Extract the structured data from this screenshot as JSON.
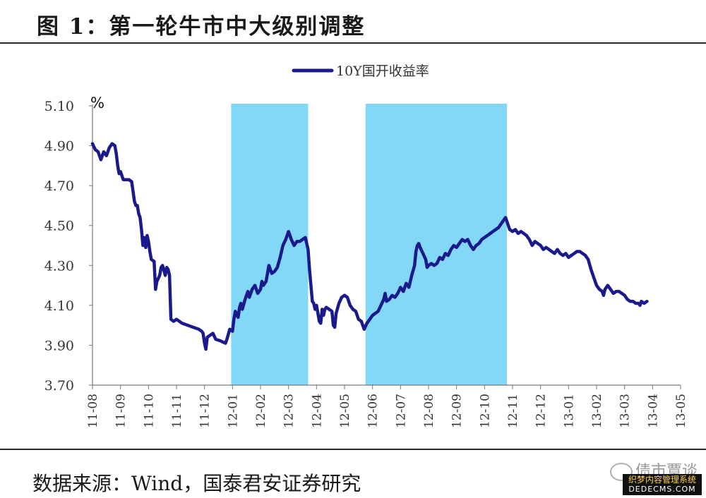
{
  "figure": {
    "title": "图 1：第一轮牛市中大级别调整",
    "source": "数据来源：Wind，国泰君安证券研究",
    "watermark": "债市覃谈",
    "stamp_line1": "织梦内容管理系统",
    "stamp_line2": "DEDECMS.COM"
  },
  "chart_data": {
    "type": "line",
    "title": "",
    "xlabel": "",
    "ylabel": "%",
    "ylim": [
      3.7,
      5.1
    ],
    "yticks": [
      "3.70",
      "3.90",
      "4.10",
      "4.30",
      "4.50",
      "4.70",
      "4.90",
      "5.10"
    ],
    "x_categories": [
      "11-08",
      "11-09",
      "11-10",
      "11-11",
      "11-12",
      "12-01",
      "12-02",
      "12-03",
      "12-04",
      "12-05",
      "12-06",
      "12-07",
      "12-08",
      "12-09",
      "12-10",
      "12-11",
      "12-12",
      "13-01",
      "13-02",
      "13-03",
      "13-04",
      "13-05"
    ],
    "legend": {
      "position": "top-center",
      "entries": [
        "10Y国开收益率"
      ]
    },
    "series": [
      {
        "name": "10Y国开收益率",
        "color": "#1a1a8c",
        "points": [
          [
            0.0,
            4.91
          ],
          [
            0.1,
            4.88
          ],
          [
            0.2,
            4.87
          ],
          [
            0.3,
            4.83
          ],
          [
            0.4,
            4.87
          ],
          [
            0.5,
            4.85
          ],
          [
            0.6,
            4.89
          ],
          [
            0.7,
            4.91
          ],
          [
            0.8,
            4.9
          ],
          [
            0.85,
            4.86
          ],
          [
            0.9,
            4.8
          ],
          [
            0.95,
            4.76
          ],
          [
            1.0,
            4.77
          ],
          [
            1.1,
            4.73
          ],
          [
            1.2,
            4.73
          ],
          [
            1.3,
            4.73
          ],
          [
            1.4,
            4.72
          ],
          [
            1.5,
            4.62
          ],
          [
            1.55,
            4.6
          ],
          [
            1.6,
            4.6
          ],
          [
            1.65,
            4.56
          ],
          [
            1.7,
            4.54
          ],
          [
            1.75,
            4.48
          ],
          [
            1.8,
            4.4
          ],
          [
            1.85,
            4.44
          ],
          [
            1.9,
            4.39
          ],
          [
            1.95,
            4.45
          ],
          [
            2.0,
            4.42
          ],
          [
            2.05,
            4.37
          ],
          [
            2.1,
            4.33
          ],
          [
            2.2,
            4.32
          ],
          [
            2.25,
            4.18
          ],
          [
            2.3,
            4.22
          ],
          [
            2.4,
            4.25
          ],
          [
            2.45,
            4.29
          ],
          [
            2.5,
            4.3
          ],
          [
            2.6,
            4.25
          ],
          [
            2.65,
            4.29
          ],
          [
            2.7,
            4.28
          ],
          [
            2.75,
            4.25
          ],
          [
            2.8,
            4.03
          ],
          [
            2.9,
            4.02
          ],
          [
            3.0,
            4.03
          ],
          [
            3.1,
            4.02
          ],
          [
            3.2,
            4.01
          ],
          [
            3.4,
            4.0
          ],
          [
            3.6,
            3.99
          ],
          [
            3.8,
            3.98
          ],
          [
            3.9,
            3.97
          ],
          [
            3.95,
            3.96
          ],
          [
            4.0,
            3.91
          ],
          [
            4.05,
            3.88
          ],
          [
            4.1,
            3.94
          ],
          [
            4.2,
            3.95
          ],
          [
            4.3,
            3.96
          ],
          [
            4.4,
            3.93
          ],
          [
            4.6,
            3.92
          ],
          [
            4.75,
            3.91
          ],
          [
            4.8,
            3.93
          ],
          [
            4.9,
            3.98
          ],
          [
            5.0,
            3.97
          ],
          [
            5.05,
            4.03
          ],
          [
            5.1,
            4.07
          ],
          [
            5.2,
            4.04
          ],
          [
            5.25,
            4.09
          ],
          [
            5.3,
            4.11
          ],
          [
            5.35,
            4.08
          ],
          [
            5.45,
            4.13
          ],
          [
            5.55,
            4.17
          ],
          [
            5.6,
            4.14
          ],
          [
            5.7,
            4.18
          ],
          [
            5.8,
            4.2
          ],
          [
            5.9,
            4.16
          ],
          [
            6.0,
            4.18
          ],
          [
            6.05,
            4.22
          ],
          [
            6.1,
            4.2
          ],
          [
            6.2,
            4.22
          ],
          [
            6.3,
            4.3
          ],
          [
            6.4,
            4.26
          ],
          [
            6.5,
            4.27
          ],
          [
            6.6,
            4.29
          ],
          [
            6.7,
            4.34
          ],
          [
            6.8,
            4.4
          ],
          [
            6.9,
            4.43
          ],
          [
            7.0,
            4.47
          ],
          [
            7.1,
            4.43
          ],
          [
            7.2,
            4.4
          ],
          [
            7.3,
            4.42
          ],
          [
            7.4,
            4.42
          ],
          [
            7.5,
            4.43
          ],
          [
            7.6,
            4.44
          ],
          [
            7.7,
            4.38
          ],
          [
            7.75,
            4.28
          ],
          [
            7.8,
            4.2
          ],
          [
            7.85,
            4.12
          ],
          [
            7.9,
            4.11
          ],
          [
            7.95,
            4.08
          ],
          [
            8.0,
            4.1
          ],
          [
            8.05,
            4.06
          ],
          [
            8.1,
            4.02
          ],
          [
            8.15,
            4.01
          ],
          [
            8.2,
            4.08
          ],
          [
            8.25,
            4.05
          ],
          [
            8.3,
            4.08
          ],
          [
            8.35,
            4.09
          ],
          [
            8.45,
            4.08
          ],
          [
            8.55,
            4.07
          ],
          [
            8.6,
            4.0
          ],
          [
            8.65,
            3.99
          ],
          [
            8.7,
            4.06
          ],
          [
            8.8,
            4.11
          ],
          [
            8.9,
            4.14
          ],
          [
            9.0,
            4.15
          ],
          [
            9.1,
            4.14
          ],
          [
            9.2,
            4.1
          ],
          [
            9.3,
            4.08
          ],
          [
            9.4,
            4.07
          ],
          [
            9.5,
            4.03
          ],
          [
            9.6,
            4.02
          ],
          [
            9.7,
            3.98
          ],
          [
            9.8,
            4.01
          ],
          [
            9.9,
            4.03
          ],
          [
            10.0,
            4.05
          ],
          [
            10.1,
            4.06
          ],
          [
            10.2,
            4.07
          ],
          [
            10.3,
            4.1
          ],
          [
            10.4,
            4.13
          ],
          [
            10.45,
            4.16
          ],
          [
            10.5,
            4.12
          ],
          [
            10.6,
            4.13
          ],
          [
            10.7,
            4.15
          ],
          [
            10.8,
            4.14
          ],
          [
            10.9,
            4.16
          ],
          [
            11.0,
            4.19
          ],
          [
            11.1,
            4.17
          ],
          [
            11.2,
            4.21
          ],
          [
            11.3,
            4.19
          ],
          [
            11.4,
            4.25
          ],
          [
            11.5,
            4.3
          ],
          [
            11.55,
            4.37
          ],
          [
            11.6,
            4.4
          ],
          [
            11.65,
            4.41
          ],
          [
            11.7,
            4.39
          ],
          [
            11.8,
            4.36
          ],
          [
            11.9,
            4.33
          ],
          [
            11.95,
            4.29
          ],
          [
            12.0,
            4.3
          ],
          [
            12.1,
            4.31
          ],
          [
            12.2,
            4.3
          ],
          [
            12.3,
            4.31
          ],
          [
            12.4,
            4.34
          ],
          [
            12.5,
            4.33
          ],
          [
            12.6,
            4.36
          ],
          [
            12.7,
            4.35
          ],
          [
            12.8,
            4.38
          ],
          [
            12.9,
            4.4
          ],
          [
            13.0,
            4.39
          ],
          [
            13.1,
            4.41
          ],
          [
            13.2,
            4.43
          ],
          [
            13.3,
            4.42
          ],
          [
            13.4,
            4.43
          ],
          [
            13.5,
            4.4
          ],
          [
            13.6,
            4.38
          ],
          [
            13.7,
            4.4
          ],
          [
            13.8,
            4.41
          ],
          [
            13.9,
            4.43
          ],
          [
            14.0,
            4.44
          ],
          [
            14.1,
            4.45
          ],
          [
            14.2,
            4.46
          ],
          [
            14.3,
            4.47
          ],
          [
            14.4,
            4.48
          ],
          [
            14.5,
            4.49
          ],
          [
            14.6,
            4.51
          ],
          [
            14.7,
            4.53
          ],
          [
            14.75,
            4.54
          ],
          [
            14.8,
            4.52
          ],
          [
            14.85,
            4.5
          ],
          [
            14.9,
            4.48
          ],
          [
            15.0,
            4.47
          ],
          [
            15.1,
            4.48
          ],
          [
            15.2,
            4.46
          ],
          [
            15.3,
            4.47
          ],
          [
            15.4,
            4.46
          ],
          [
            15.5,
            4.45
          ],
          [
            15.6,
            4.43
          ],
          [
            15.7,
            4.4
          ],
          [
            15.8,
            4.42
          ],
          [
            15.9,
            4.41
          ],
          [
            16.0,
            4.4
          ],
          [
            16.1,
            4.38
          ],
          [
            16.2,
            4.39
          ],
          [
            16.3,
            4.38
          ],
          [
            16.4,
            4.37
          ],
          [
            16.5,
            4.36
          ],
          [
            16.6,
            4.38
          ],
          [
            16.7,
            4.36
          ],
          [
            16.8,
            4.35
          ],
          [
            16.9,
            4.36
          ],
          [
            17.0,
            4.34
          ],
          [
            17.1,
            4.35
          ],
          [
            17.2,
            4.36
          ],
          [
            17.3,
            4.37
          ],
          [
            17.4,
            4.37
          ],
          [
            17.5,
            4.36
          ],
          [
            17.6,
            4.35
          ],
          [
            17.7,
            4.33
          ],
          [
            17.8,
            4.28
          ],
          [
            17.9,
            4.24
          ],
          [
            18.0,
            4.2
          ],
          [
            18.1,
            4.18
          ],
          [
            18.2,
            4.17
          ],
          [
            18.25,
            4.15
          ],
          [
            18.3,
            4.18
          ],
          [
            18.4,
            4.2
          ],
          [
            18.5,
            4.18
          ],
          [
            18.6,
            4.16
          ],
          [
            18.7,
            4.17
          ],
          [
            18.8,
            4.17
          ],
          [
            18.9,
            4.16
          ],
          [
            19.0,
            4.15
          ],
          [
            19.1,
            4.13
          ],
          [
            19.2,
            4.12
          ],
          [
            19.3,
            4.12
          ],
          [
            19.4,
            4.11
          ],
          [
            19.5,
            4.11
          ],
          [
            19.55,
            4.1
          ],
          [
            19.6,
            4.12
          ],
          [
            19.7,
            4.11
          ],
          [
            19.8,
            4.12
          ]
        ]
      }
    ],
    "shaded_periods": [
      {
        "x_start": 4.95,
        "x_end": 7.7,
        "color": "#82d8f6"
      },
      {
        "x_start": 9.75,
        "x_end": 14.8,
        "color": "#82d8f6"
      }
    ],
    "grid": false
  }
}
